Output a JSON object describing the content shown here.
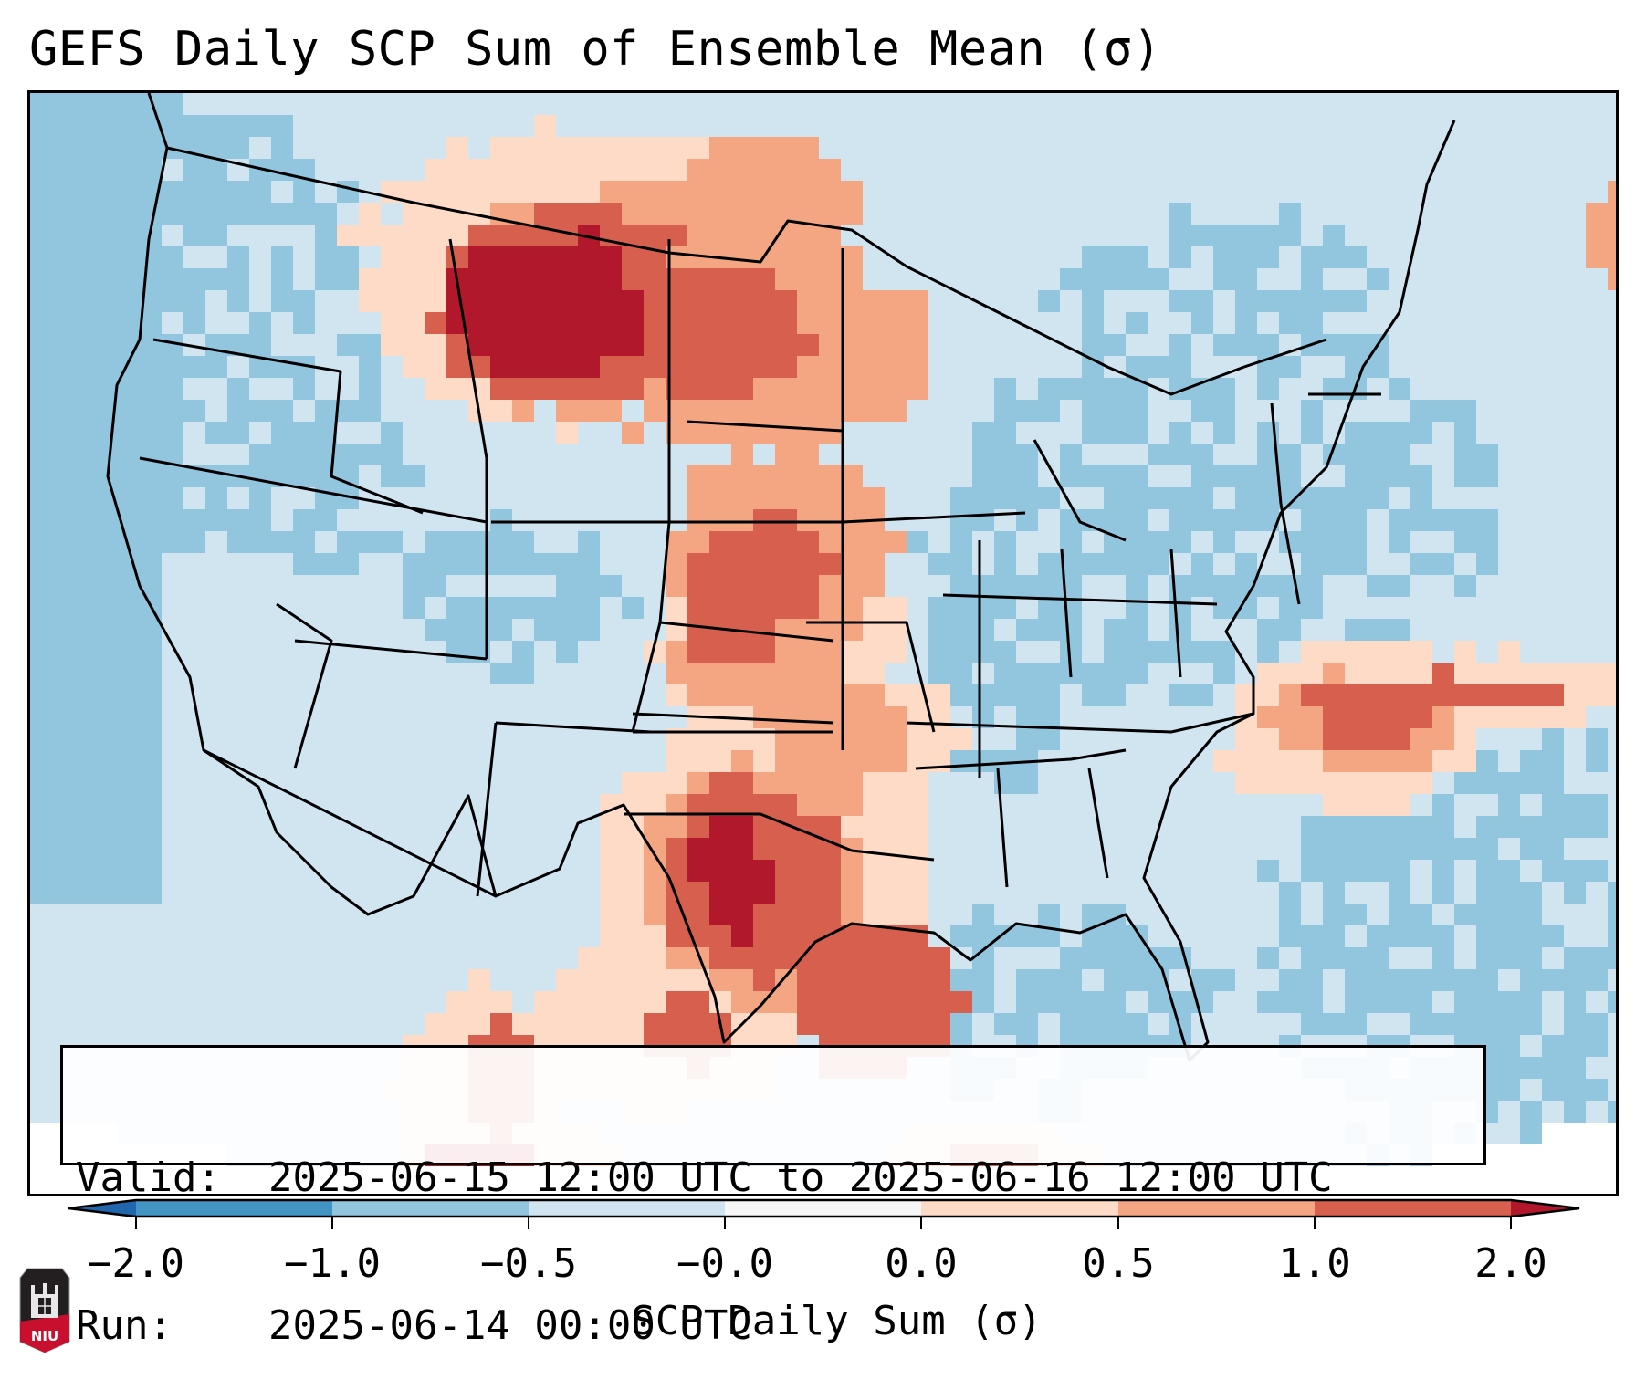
{
  "chart_data": {
    "type": "heatmap",
    "title": "GEFS Daily SCP Sum of Ensemble Mean (σ)",
    "projection": "Lambert Conformal, contiguous United States",
    "variable": "SCP Daily Sum (σ)",
    "colorbar": {
      "label": "SCP Daily Sum (σ)",
      "tick_labels": [
        "−2.0",
        "−1.0",
        "−0.5",
        "−0.0",
        "0.0",
        "0.5",
        "1.0",
        "2.0"
      ],
      "bounds": [
        -2.0,
        -1.0,
        -0.5,
        -0.0,
        0.0,
        0.5,
        1.0,
        2.0
      ],
      "extend": "both",
      "bins": [
        {
          "range": "< -2.0",
          "color": "#2166ac"
        },
        {
          "range": "-2.0 to -1.0",
          "color": "#4393c3"
        },
        {
          "range": "-1.0 to -0.5",
          "color": "#92c5de"
        },
        {
          "range": "-0.5 to -0.0",
          "color": "#d1e5f0"
        },
        {
          "range": "-0.0 to 0.0",
          "color": "#f7f7f7"
        },
        {
          "range": "0.0 to 0.5",
          "color": "#fddbc7"
        },
        {
          "range": "0.5 to 1.0",
          "color": "#f4a582"
        },
        {
          "range": "1.0 to 2.0",
          "color": "#d6604d"
        },
        {
          "range": "> 2.0",
          "color": "#b2182b"
        }
      ]
    },
    "notable_regions": [
      {
        "region": "Montana / northern Wyoming",
        "value_range": "> 2.0"
      },
      {
        "region": "North Dakota / South Dakota",
        "value_range": "0.5 to 2.0"
      },
      {
        "region": "Central Plains (Nebraska, Kansas, Oklahoma)",
        "value_range": "0.5 to 2.0"
      },
      {
        "region": "West / Central Texas",
        "value_range": "1.0 to > 2.0"
      },
      {
        "region": "Virginia / NC coast into Atlantic",
        "value_range": "0.5 to 2.0"
      },
      {
        "region": "Midwest, Ohio Valley, Northeast",
        "value_range": "-1.0 to -0.5"
      },
      {
        "region": "Southeast, Gulf Coast, Intermountain West",
        "value_range": "-0.5 to -0.0"
      }
    ]
  },
  "title": "GEFS Daily SCP Sum of Ensemble Mean (σ)",
  "info": {
    "valid_key": "Valid:",
    "valid_value": "2025-06-15 12:00 UTC to 2025-06-16 12:00 UTC",
    "run_key": "Run:",
    "run_value": "2025-06-14 00:00 UTC"
  },
  "logo": {
    "text": "NIU",
    "icon": "niu-logo-icon"
  },
  "colors": {
    "deep_red": "#b2182b",
    "red": "#d6604d",
    "salmon": "#f4a582",
    "peach": "#fddbc7",
    "white": "#f7f7f7",
    "light_blue": "#d1e5f0",
    "blue": "#92c5de",
    "mid_blue": "#4393c3",
    "dark_blue": "#2166ac"
  }
}
